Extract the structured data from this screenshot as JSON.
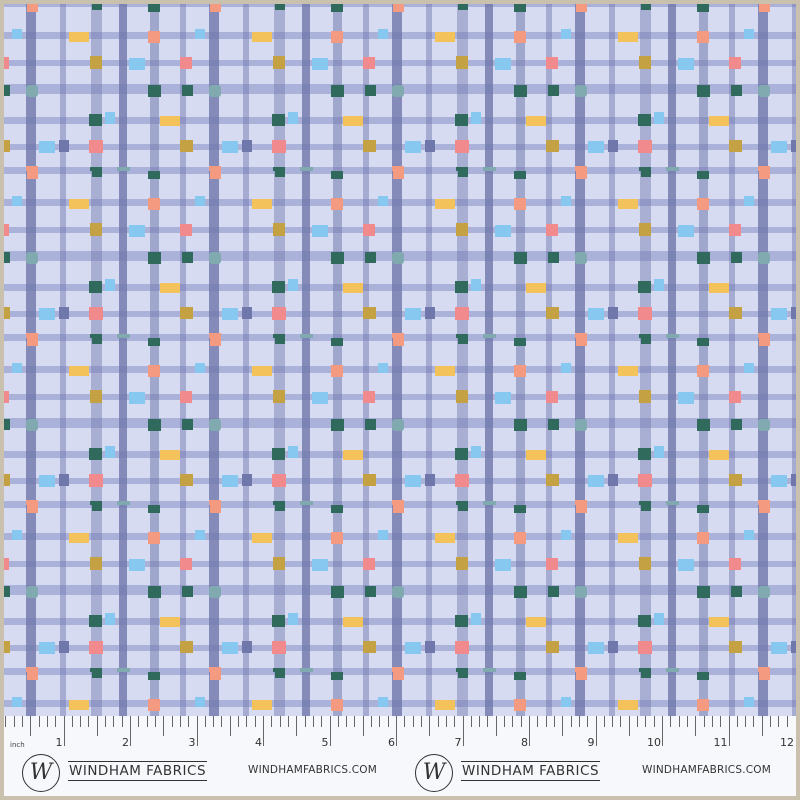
{
  "ruler": {
    "unit_label": "inch",
    "numbers": [
      "1",
      "2",
      "3",
      "4",
      "5",
      "6",
      "7",
      "8",
      "9",
      "10",
      "11",
      "12"
    ]
  },
  "branding": [
    {
      "logo_letter": "W",
      "name": "WINDHAM FABRICS",
      "url": "WINDHAMFABRICS.COM"
    },
    {
      "logo_letter": "W",
      "name": "WINDHAM FABRICS",
      "url": "WINDHAMFABRICS.COM"
    }
  ],
  "colors": {
    "background": "#d6dbf2",
    "stripe_dark": "#6f77ab",
    "stripe_light": "#a3abd6",
    "yellow": "#f3c25a",
    "peach": "#f49a80",
    "pink": "#f08a8c",
    "mustard": "#c4a142",
    "light_blue": "#86c8f0",
    "dark_green": "#2f6a5c",
    "teal_grey": "#80aab0",
    "frame": "#c9c1ae"
  }
}
